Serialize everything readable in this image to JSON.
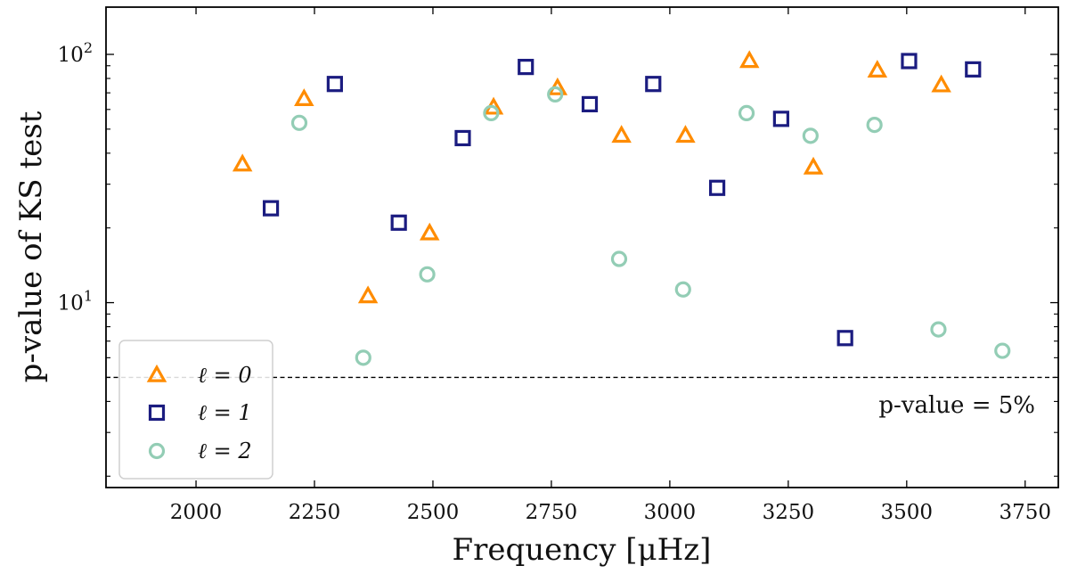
{
  "chart_data": {
    "type": "scatter",
    "title": "",
    "xlabel": "Frequency [μHz]",
    "ylabel": "p-value of KS test",
    "yscale": "log",
    "xlim": [
      1810,
      3820
    ],
    "ylim": [
      1.8,
      155
    ],
    "x_ticks": [
      2000,
      2250,
      2500,
      2750,
      3000,
      3250,
      3500,
      3750
    ],
    "x_tick_labels": [
      "2000",
      "2250",
      "2500",
      "2750",
      "3000",
      "3250",
      "3500",
      "3750"
    ],
    "y_major_ticks": [
      10,
      100
    ],
    "y_tick_labels": [
      {
        "base": "10",
        "exp": "1"
      },
      {
        "base": "10",
        "exp": "2"
      }
    ],
    "y_minor_ticks": [
      2,
      3,
      4,
      5,
      6,
      7,
      8,
      9,
      20,
      30,
      40,
      50,
      60,
      70,
      80,
      90
    ],
    "grid": false,
    "legend_position": "bottom-left",
    "threshold": {
      "value": 5,
      "label": "p-value = 5%",
      "style": "dashed",
      "color": "#000000"
    },
    "series": [
      {
        "name": "ℓ = 0",
        "marker": "triangle",
        "color": "#ff8c00",
        "points": [
          [
            2098,
            36
          ],
          [
            2228,
            66
          ],
          [
            2363,
            10.6
          ],
          [
            2493,
            19
          ],
          [
            2628,
            61
          ],
          [
            2763,
            73
          ],
          [
            2898,
            47
          ],
          [
            3033,
            47
          ],
          [
            3168,
            94
          ],
          [
            3303,
            35
          ],
          [
            3438,
            86
          ],
          [
            3573,
            75
          ]
        ]
      },
      {
        "name": "ℓ = 1",
        "marker": "square",
        "color": "#1b1c80",
        "points": [
          [
            2158,
            24
          ],
          [
            2293,
            76
          ],
          [
            2428,
            21
          ],
          [
            2563,
            46
          ],
          [
            2696,
            89
          ],
          [
            2831,
            63
          ],
          [
            2965,
            76
          ],
          [
            3100,
            29
          ],
          [
            3235,
            55
          ],
          [
            3370,
            7.2
          ],
          [
            3505,
            94
          ],
          [
            3640,
            87
          ]
        ]
      },
      {
        "name": "ℓ = 2",
        "marker": "circle",
        "color": "#93cdb5",
        "points": [
          [
            2218,
            53
          ],
          [
            2353,
            6
          ],
          [
            2488,
            13
          ],
          [
            2623,
            58
          ],
          [
            2758,
            69
          ],
          [
            2893,
            15
          ],
          [
            3028,
            11.3
          ],
          [
            3162,
            58
          ],
          [
            3297,
            47
          ],
          [
            3432,
            52
          ],
          [
            3567,
            7.8
          ],
          [
            3702,
            6.4
          ]
        ]
      }
    ]
  }
}
